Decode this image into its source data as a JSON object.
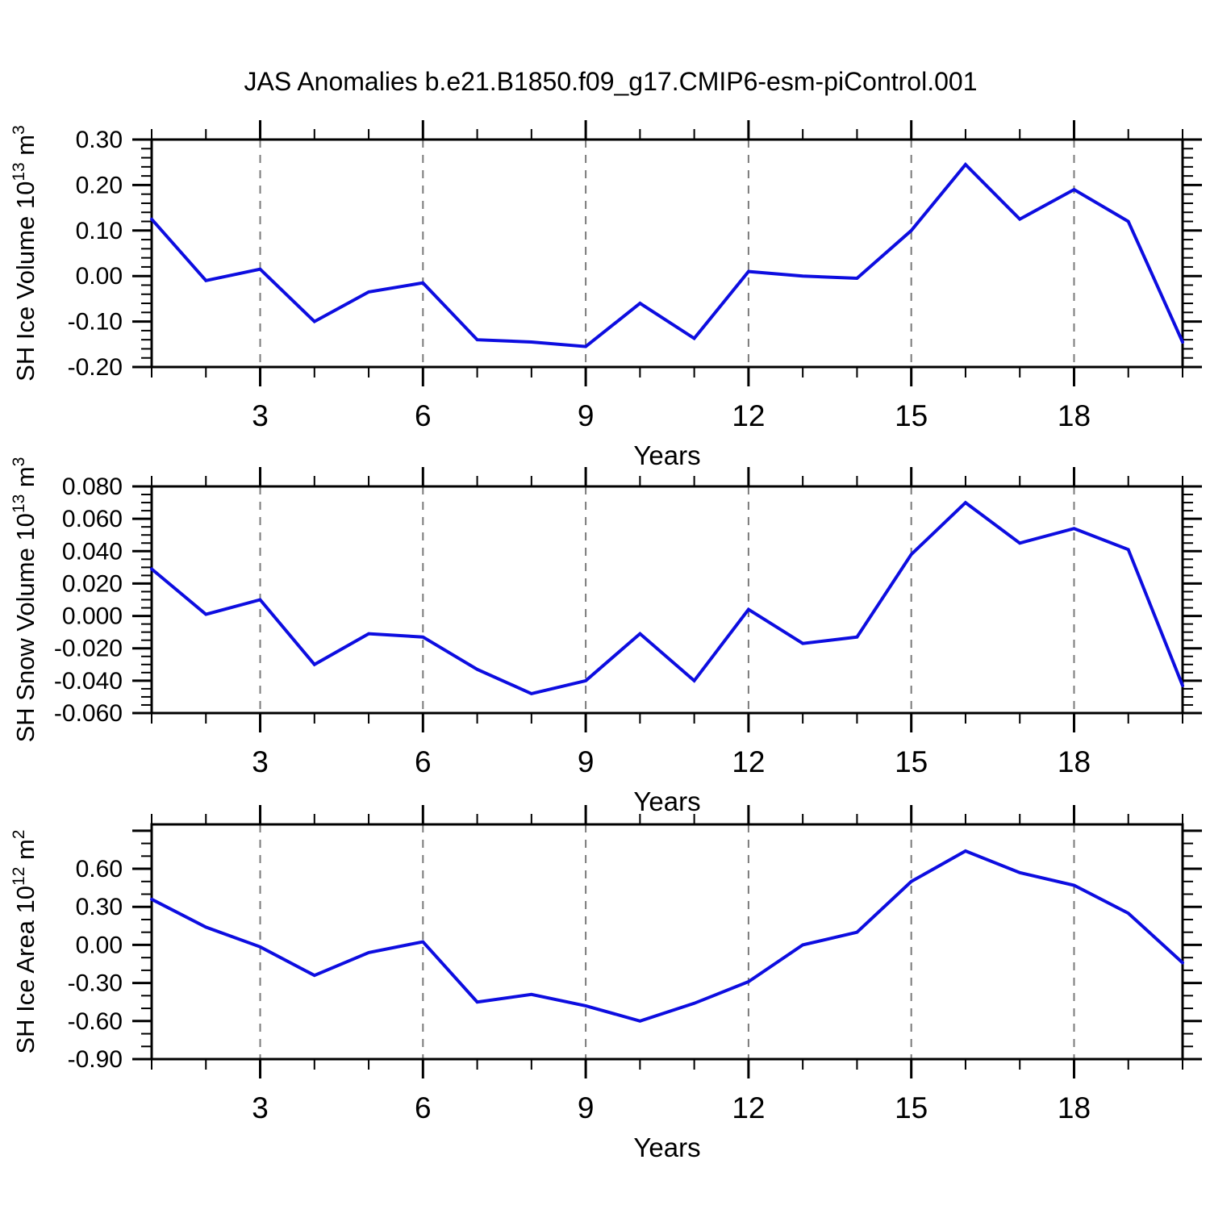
{
  "title": "JAS Anomalies b.e21.B1850.f09_g17.CMIP6-esm-piControl.001",
  "colors": {
    "line": "#0d0de0",
    "axis": "#000000",
    "grid": "#7a7a7a",
    "background": "#ffffff",
    "tick_label": "#000000"
  },
  "x_axis": {
    "label": "Years",
    "range": [
      1,
      20
    ],
    "minor_step": 1,
    "major_ticks": [
      {
        "v": 3,
        "label": "3"
      },
      {
        "v": 6,
        "label": "6"
      },
      {
        "v": 9,
        "label": "9"
      },
      {
        "v": 12,
        "label": "12"
      },
      {
        "v": 15,
        "label": "15"
      },
      {
        "v": 18,
        "label": "18"
      }
    ],
    "gridlines": "dashed-at-major-ticks"
  },
  "chart_data": [
    {
      "type": "line",
      "name": "sh-ice-volume",
      "ylabel_text": "SH Ice Volume 10^13 m^3",
      "ylabel_runs": [
        [
          "SH Ice Volume 10",
          false
        ],
        [
          "13",
          true
        ],
        [
          " m",
          false
        ],
        [
          "3",
          true
        ]
      ],
      "xlabel": "Years",
      "ylim": [
        -0.2,
        0.3
      ],
      "yminor_step": 0.02,
      "yticks": [
        {
          "v": 0.3,
          "label": "0.30"
        },
        {
          "v": 0.2,
          "label": "0.20"
        },
        {
          "v": 0.1,
          "label": "0.10"
        },
        {
          "v": 0.0,
          "label": "0.00"
        },
        {
          "v": -0.1,
          "label": "-0.10"
        },
        {
          "v": -0.2,
          "label": "-0.20"
        }
      ],
      "x": [
        1,
        2,
        3,
        4,
        5,
        6,
        7,
        8,
        9,
        10,
        11,
        12,
        13,
        14,
        15,
        16,
        17,
        18,
        19,
        20
      ],
      "values": [
        0.125,
        -0.01,
        0.015,
        -0.1,
        -0.035,
        -0.015,
        -0.14,
        -0.145,
        -0.155,
        -0.06,
        -0.137,
        0.01,
        0.0,
        -0.005,
        0.1,
        0.245,
        0.125,
        0.19,
        0.12,
        -0.145
      ]
    },
    {
      "type": "line",
      "name": "sh-snow-volume",
      "ylabel_text": "SH Snow Volume 10^13 m^3",
      "ylabel_runs": [
        [
          "SH Snow Volume 10",
          false
        ],
        [
          "13",
          true
        ],
        [
          " m",
          false
        ],
        [
          "3",
          true
        ]
      ],
      "xlabel": "Years",
      "ylim": [
        -0.06,
        0.08
      ],
      "yminor_step": 0.005,
      "yticks": [
        {
          "v": 0.08,
          "label": "0.080"
        },
        {
          "v": 0.06,
          "label": "0.060"
        },
        {
          "v": 0.04,
          "label": "0.040"
        },
        {
          "v": 0.02,
          "label": "0.020"
        },
        {
          "v": 0.0,
          "label": "0.000"
        },
        {
          "v": -0.02,
          "label": "-0.020"
        },
        {
          "v": -0.04,
          "label": "-0.040"
        },
        {
          "v": -0.06,
          "label": "-0.060"
        }
      ],
      "x": [
        1,
        2,
        3,
        4,
        5,
        6,
        7,
        8,
        9,
        10,
        11,
        12,
        13,
        14,
        15,
        16,
        17,
        18,
        19,
        20
      ],
      "values": [
        0.029,
        0.001,
        0.01,
        -0.03,
        -0.011,
        -0.013,
        -0.033,
        -0.048,
        -0.04,
        -0.011,
        -0.04,
        0.004,
        -0.017,
        -0.013,
        0.038,
        0.07,
        0.045,
        0.054,
        0.041,
        -0.043
      ]
    },
    {
      "type": "line",
      "name": "sh-ice-area",
      "ylabel_text": "SH Ice Area 10^12 m^2",
      "ylabel_runs": [
        [
          "SH Ice Area 10",
          false
        ],
        [
          "12",
          true
        ],
        [
          " m",
          false
        ],
        [
          "2",
          true
        ]
      ],
      "xlabel": "Years",
      "ylim": [
        -0.9,
        0.95
      ],
      "yminor_step": 0.1,
      "yticks": [
        {
          "v": 0.9,
          "label": ""
        },
        {
          "v": 0.6,
          "label": "0.60"
        },
        {
          "v": 0.3,
          "label": "0.30"
        },
        {
          "v": 0.0,
          "label": "0.00"
        },
        {
          "v": -0.3,
          "label": "-0.30"
        },
        {
          "v": -0.6,
          "label": "-0.60"
        },
        {
          "v": -0.9,
          "label": "-0.90"
        }
      ],
      "x": [
        1,
        2,
        3,
        4,
        5,
        6,
        7,
        8,
        9,
        10,
        11,
        12,
        13,
        14,
        15,
        16,
        17,
        18,
        19,
        20
      ],
      "values": [
        0.36,
        0.14,
        -0.015,
        -0.24,
        -0.06,
        0.025,
        -0.45,
        -0.39,
        -0.48,
        -0.6,
        -0.46,
        -0.29,
        0.0,
        0.1,
        0.5,
        0.74,
        0.57,
        0.47,
        0.25,
        -0.14
      ]
    }
  ]
}
